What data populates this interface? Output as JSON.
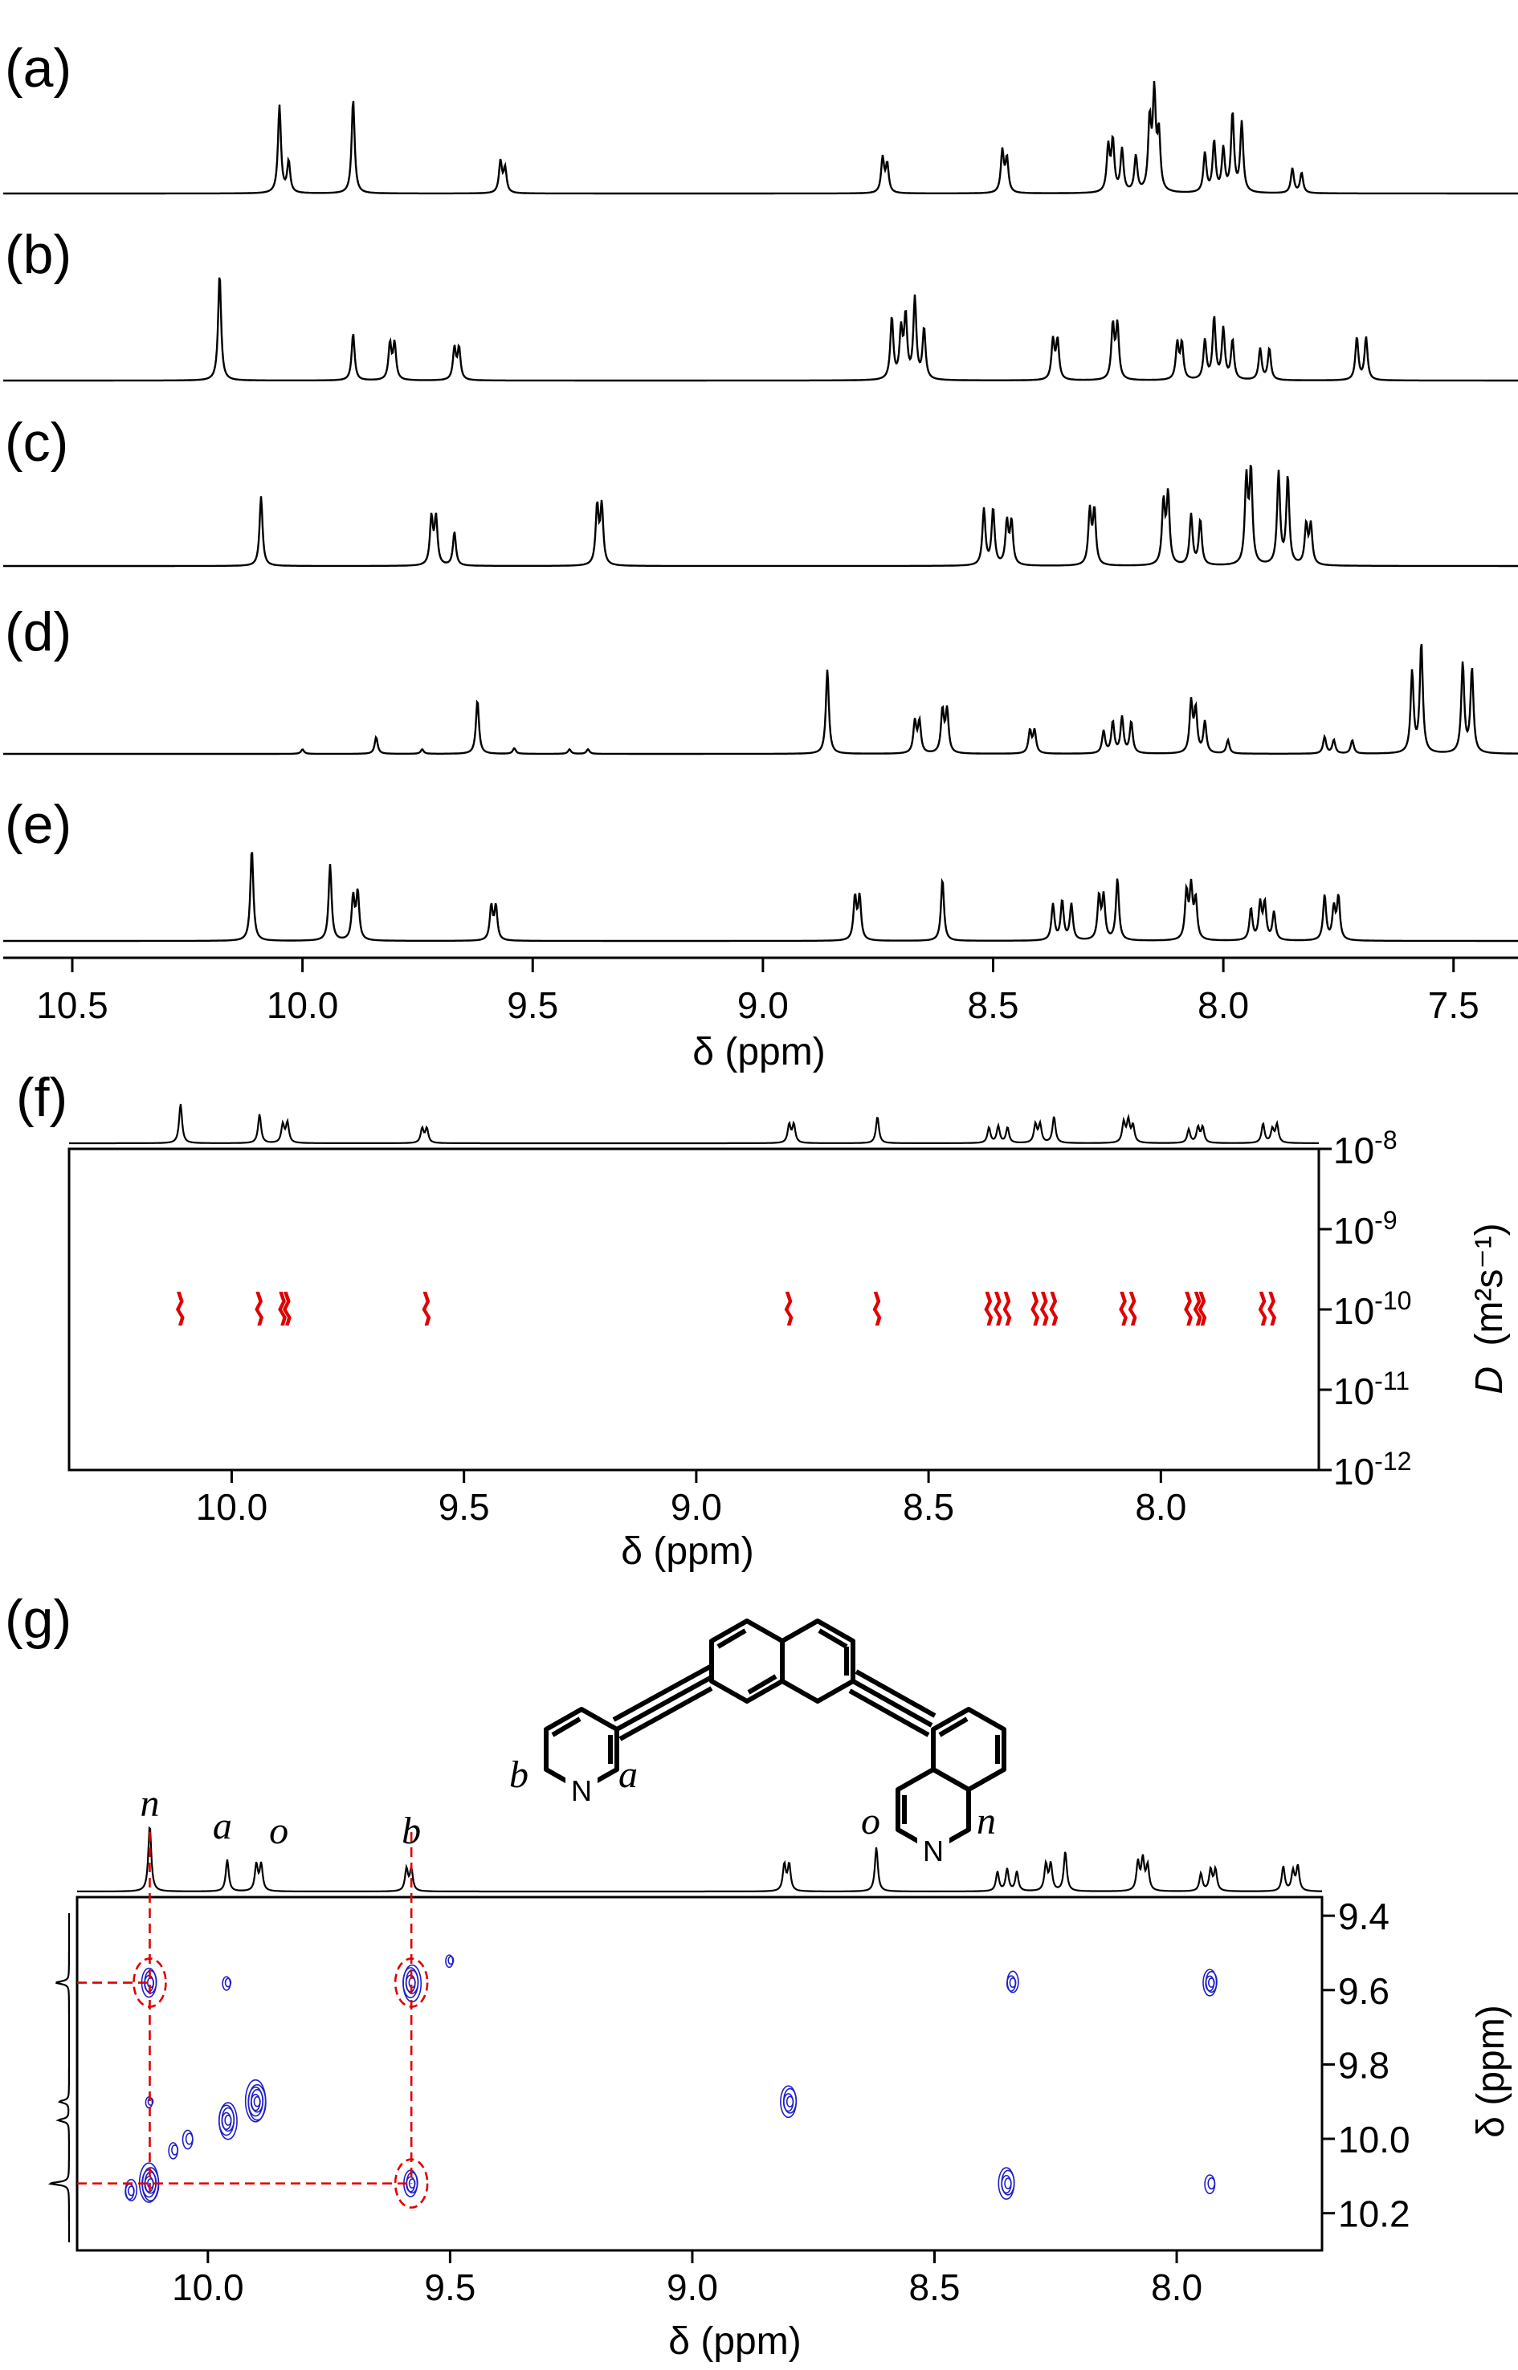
{
  "figure": {
    "panels": [
      {
        "id": "a",
        "letter": "(a)"
      },
      {
        "id": "b",
        "letter": "(b)"
      },
      {
        "id": "c",
        "letter": "(c)"
      },
      {
        "id": "d",
        "letter": "(d)"
      },
      {
        "id": "e",
        "letter": "(e)"
      },
      {
        "id": "f",
        "letter": "(f)"
      },
      {
        "id": "g",
        "letter": "(g)"
      }
    ],
    "molecule": {
      "pyridine_labels": [
        "b",
        "a"
      ],
      "isoquinoline_labels": [
        "o",
        "n"
      ],
      "atom_label": "N"
    },
    "colors": {
      "spectrum": "#000000",
      "dosy_contour": "#e00000",
      "cosy_contour": "#2020c8",
      "correlation_guide": "#e00000"
    }
  },
  "chart_data": [
    {
      "type": "line",
      "title": "",
      "xlabel": "δ (ppm)",
      "xlim": [
        10.65,
        7.36
      ],
      "x_ticks": [
        "10.5",
        "10.0",
        "9.5",
        "9.0",
        "8.5",
        "8.0",
        "7.5"
      ],
      "series": [
        {
          "panel": "(a)",
          "peaks": [
            {
              "x": 10.05,
              "y": 0.78
            },
            {
              "x": 10.03,
              "y": 0.28
            },
            {
              "x": 9.89,
              "y": 0.84
            },
            {
              "x": 9.57,
              "y": 0.28
            },
            {
              "x": 9.56,
              "y": 0.22
            },
            {
              "x": 8.74,
              "y": 0.31
            },
            {
              "x": 8.73,
              "y": 0.25
            },
            {
              "x": 8.48,
              "y": 0.37
            },
            {
              "x": 8.47,
              "y": 0.3
            },
            {
              "x": 8.25,
              "y": 0.4
            },
            {
              "x": 8.24,
              "y": 0.45
            },
            {
              "x": 8.22,
              "y": 0.38
            },
            {
              "x": 8.19,
              "y": 0.32
            },
            {
              "x": 8.16,
              "y": 0.62
            },
            {
              "x": 8.15,
              "y": 0.85
            },
            {
              "x": 8.14,
              "y": 0.5
            },
            {
              "x": 8.04,
              "y": 0.35
            },
            {
              "x": 8.02,
              "y": 0.45
            },
            {
              "x": 8.0,
              "y": 0.38
            },
            {
              "x": 7.98,
              "y": 0.7
            },
            {
              "x": 7.96,
              "y": 0.62
            },
            {
              "x": 7.85,
              "y": 0.22
            },
            {
              "x": 7.83,
              "y": 0.18
            }
          ]
        },
        {
          "panel": "(b)",
          "peaks": [
            {
              "x": 10.18,
              "y": 0.95
            },
            {
              "x": 9.89,
              "y": 0.42
            },
            {
              "x": 9.81,
              "y": 0.32
            },
            {
              "x": 9.8,
              "y": 0.32
            },
            {
              "x": 9.67,
              "y": 0.28
            },
            {
              "x": 9.66,
              "y": 0.28
            },
            {
              "x": 8.72,
              "y": 0.55
            },
            {
              "x": 8.7,
              "y": 0.42
            },
            {
              "x": 8.69,
              "y": 0.55
            },
            {
              "x": 8.67,
              "y": 0.72
            },
            {
              "x": 8.65,
              "y": 0.45
            },
            {
              "x": 8.37,
              "y": 0.35
            },
            {
              "x": 8.36,
              "y": 0.35
            },
            {
              "x": 8.24,
              "y": 0.48
            },
            {
              "x": 8.23,
              "y": 0.48
            },
            {
              "x": 8.1,
              "y": 0.32
            },
            {
              "x": 8.09,
              "y": 0.32
            },
            {
              "x": 8.04,
              "y": 0.35
            },
            {
              "x": 8.02,
              "y": 0.55
            },
            {
              "x": 8.0,
              "y": 0.45
            },
            {
              "x": 7.98,
              "y": 0.35
            },
            {
              "x": 7.92,
              "y": 0.28
            },
            {
              "x": 7.9,
              "y": 0.28
            },
            {
              "x": 7.71,
              "y": 0.38
            },
            {
              "x": 7.69,
              "y": 0.38
            }
          ]
        },
        {
          "panel": "(c)",
          "peaks": [
            {
              "x": 10.09,
              "y": 0.62
            },
            {
              "x": 9.72,
              "y": 0.42
            },
            {
              "x": 9.71,
              "y": 0.42
            },
            {
              "x": 9.67,
              "y": 0.3
            },
            {
              "x": 9.36,
              "y": 0.52
            },
            {
              "x": 9.35,
              "y": 0.52
            },
            {
              "x": 8.52,
              "y": 0.5
            },
            {
              "x": 8.5,
              "y": 0.5
            },
            {
              "x": 8.47,
              "y": 0.38
            },
            {
              "x": 8.46,
              "y": 0.38
            },
            {
              "x": 8.29,
              "y": 0.48
            },
            {
              "x": 8.28,
              "y": 0.48
            },
            {
              "x": 8.13,
              "y": 0.55
            },
            {
              "x": 8.12,
              "y": 0.62
            },
            {
              "x": 8.07,
              "y": 0.45
            },
            {
              "x": 8.05,
              "y": 0.4
            },
            {
              "x": 7.95,
              "y": 0.75
            },
            {
              "x": 7.94,
              "y": 0.82
            },
            {
              "x": 7.88,
              "y": 0.82
            },
            {
              "x": 7.86,
              "y": 0.78
            },
            {
              "x": 7.82,
              "y": 0.35
            },
            {
              "x": 7.81,
              "y": 0.35
            }
          ]
        },
        {
          "panel": "(d)",
          "peaks": [
            {
              "x": 10.0,
              "y": 0.04
            },
            {
              "x": 9.84,
              "y": 0.15
            },
            {
              "x": 9.74,
              "y": 0.04
            },
            {
              "x": 9.62,
              "y": 0.48
            },
            {
              "x": 9.54,
              "y": 0.05
            },
            {
              "x": 9.42,
              "y": 0.04
            },
            {
              "x": 9.38,
              "y": 0.04
            },
            {
              "x": 8.86,
              "y": 0.75
            },
            {
              "x": 8.67,
              "y": 0.28
            },
            {
              "x": 8.66,
              "y": 0.28
            },
            {
              "x": 8.61,
              "y": 0.38
            },
            {
              "x": 8.6,
              "y": 0.38
            },
            {
              "x": 8.42,
              "y": 0.2
            },
            {
              "x": 8.41,
              "y": 0.2
            },
            {
              "x": 8.26,
              "y": 0.2
            },
            {
              "x": 8.24,
              "y": 0.28
            },
            {
              "x": 8.22,
              "y": 0.32
            },
            {
              "x": 8.2,
              "y": 0.28
            },
            {
              "x": 8.07,
              "y": 0.45
            },
            {
              "x": 8.06,
              "y": 0.38
            },
            {
              "x": 8.04,
              "y": 0.28
            },
            {
              "x": 7.99,
              "y": 0.12
            },
            {
              "x": 7.78,
              "y": 0.15
            },
            {
              "x": 7.76,
              "y": 0.12
            },
            {
              "x": 7.72,
              "y": 0.12
            },
            {
              "x": 7.59,
              "y": 0.72
            },
            {
              "x": 7.57,
              "y": 0.98
            },
            {
              "x": 7.48,
              "y": 0.8
            },
            {
              "x": 7.46,
              "y": 0.75
            }
          ]
        },
        {
          "panel": "(e)",
          "peaks": [
            {
              "x": 10.11,
              "y": 0.82
            },
            {
              "x": 9.94,
              "y": 0.68
            },
            {
              "x": 9.89,
              "y": 0.38
            },
            {
              "x": 9.88,
              "y": 0.42
            },
            {
              "x": 9.59,
              "y": 0.3
            },
            {
              "x": 9.58,
              "y": 0.3
            },
            {
              "x": 8.8,
              "y": 0.38
            },
            {
              "x": 8.79,
              "y": 0.38
            },
            {
              "x": 8.61,
              "y": 0.55
            },
            {
              "x": 8.37,
              "y": 0.32
            },
            {
              "x": 8.35,
              "y": 0.35
            },
            {
              "x": 8.33,
              "y": 0.32
            },
            {
              "x": 8.27,
              "y": 0.38
            },
            {
              "x": 8.26,
              "y": 0.38
            },
            {
              "x": 8.23,
              "y": 0.55
            },
            {
              "x": 8.08,
              "y": 0.42
            },
            {
              "x": 8.07,
              "y": 0.45
            },
            {
              "x": 8.06,
              "y": 0.35
            },
            {
              "x": 7.94,
              "y": 0.28
            },
            {
              "x": 7.92,
              "y": 0.32
            },
            {
              "x": 7.91,
              "y": 0.32
            },
            {
              "x": 7.89,
              "y": 0.25
            },
            {
              "x": 7.78,
              "y": 0.4
            },
            {
              "x": 7.76,
              "y": 0.28
            },
            {
              "x": 7.75,
              "y": 0.38
            }
          ]
        }
      ]
    },
    {
      "type": "heatmap",
      "panel": "(f)",
      "title": "",
      "xlabel": "δ (ppm)",
      "ylabel_main": "D",
      "ylabel_unit": "(m²s⁻¹)",
      "xlim": [
        10.35,
        7.66
      ],
      "x_ticks": [
        "10.0",
        "9.5",
        "9.0",
        "8.5",
        "8.0"
      ],
      "y_scale": "log",
      "ylim": [
        1e-12,
        1e-08
      ],
      "y_ticks": [
        {
          "base": "10",
          "exp": "-8"
        },
        {
          "base": "10",
          "exp": "-9"
        },
        {
          "base": "10",
          "exp": "-10"
        },
        {
          "base": "10",
          "exp": "-11"
        },
        {
          "base": "10",
          "exp": "-12"
        }
      ],
      "projection_peaks": [
        {
          "x": 10.11,
          "y": 0.82
        },
        {
          "x": 9.94,
          "y": 0.6
        },
        {
          "x": 9.89,
          "y": 0.38
        },
        {
          "x": 9.88,
          "y": 0.42
        },
        {
          "x": 9.59,
          "y": 0.3
        },
        {
          "x": 9.58,
          "y": 0.3
        },
        {
          "x": 8.8,
          "y": 0.38
        },
        {
          "x": 8.79,
          "y": 0.38
        },
        {
          "x": 8.61,
          "y": 0.55
        },
        {
          "x": 8.37,
          "y": 0.32
        },
        {
          "x": 8.35,
          "y": 0.35
        },
        {
          "x": 8.33,
          "y": 0.32
        },
        {
          "x": 8.27,
          "y": 0.38
        },
        {
          "x": 8.26,
          "y": 0.38
        },
        {
          "x": 8.23,
          "y": 0.55
        },
        {
          "x": 8.08,
          "y": 0.42
        },
        {
          "x": 8.07,
          "y": 0.45
        },
        {
          "x": 8.06,
          "y": 0.35
        },
        {
          "x": 7.94,
          "y": 0.28
        },
        {
          "x": 7.92,
          "y": 0.32
        },
        {
          "x": 7.91,
          "y": 0.32
        },
        {
          "x": 7.78,
          "y": 0.4
        },
        {
          "x": 7.76,
          "y": 0.28
        },
        {
          "x": 7.75,
          "y": 0.38
        }
      ],
      "signals": [
        {
          "x": 10.11,
          "D": 1e-10
        },
        {
          "x": 9.94,
          "D": 1e-10
        },
        {
          "x": 9.89,
          "D": 1e-10
        },
        {
          "x": 9.88,
          "D": 1e-10
        },
        {
          "x": 9.58,
          "D": 1e-10
        },
        {
          "x": 8.8,
          "D": 1e-10
        },
        {
          "x": 8.61,
          "D": 1e-10
        },
        {
          "x": 8.37,
          "D": 1e-10
        },
        {
          "x": 8.35,
          "D": 1e-10
        },
        {
          "x": 8.33,
          "D": 1e-10
        },
        {
          "x": 8.27,
          "D": 1e-10
        },
        {
          "x": 8.25,
          "D": 1e-10
        },
        {
          "x": 8.23,
          "D": 1e-10
        },
        {
          "x": 8.08,
          "D": 1e-10
        },
        {
          "x": 8.06,
          "D": 1e-10
        },
        {
          "x": 7.94,
          "D": 1e-10
        },
        {
          "x": 7.92,
          "D": 1e-10
        },
        {
          "x": 7.91,
          "D": 1e-10
        },
        {
          "x": 7.78,
          "D": 1e-10
        },
        {
          "x": 7.76,
          "D": 1e-10
        }
      ]
    },
    {
      "type": "heatmap",
      "panel": "(g)",
      "title": "",
      "xlabel": "δ (ppm)",
      "ylabel": "δ (ppm)",
      "xlim": [
        10.27,
        7.7
      ],
      "ylim": [
        9.35,
        10.3
      ],
      "x_ticks": [
        "10.0",
        "9.5",
        "9.0",
        "8.5",
        "8.0"
      ],
      "y_ticks": [
        "9.4",
        "9.6",
        "9.8",
        "10.0",
        "10.2"
      ],
      "projection_peaks": [
        {
          "x": 10.12,
          "y": 0.75
        },
        {
          "x": 9.96,
          "y": 0.36
        },
        {
          "x": 9.9,
          "y": 0.3
        },
        {
          "x": 9.89,
          "y": 0.3
        },
        {
          "x": 9.59,
          "y": 0.25
        },
        {
          "x": 9.58,
          "y": 0.25
        },
        {
          "x": 8.81,
          "y": 0.3
        },
        {
          "x": 8.8,
          "y": 0.3
        },
        {
          "x": 8.62,
          "y": 0.5
        },
        {
          "x": 8.37,
          "y": 0.22
        },
        {
          "x": 8.35,
          "y": 0.25
        },
        {
          "x": 8.33,
          "y": 0.22
        },
        {
          "x": 8.27,
          "y": 0.3
        },
        {
          "x": 8.26,
          "y": 0.3
        },
        {
          "x": 8.23,
          "y": 0.45
        },
        {
          "x": 8.08,
          "y": 0.32
        },
        {
          "x": 8.07,
          "y": 0.35
        },
        {
          "x": 8.06,
          "y": 0.28
        },
        {
          "x": 7.95,
          "y": 0.2
        },
        {
          "x": 7.93,
          "y": 0.24
        },
        {
          "x": 7.92,
          "y": 0.24
        },
        {
          "x": 7.78,
          "y": 0.28
        },
        {
          "x": 7.76,
          "y": 0.22
        },
        {
          "x": 7.75,
          "y": 0.28
        }
      ],
      "projection_labels": [
        {
          "text": "n",
          "x": 10.12
        },
        {
          "text": "a",
          "x": 9.97
        },
        {
          "text": "o",
          "x": 9.9
        },
        {
          "text": "b",
          "x": 9.58
        }
      ],
      "vertical_projection_peaks": [
        {
          "y": 9.58,
          "h": 0.55
        },
        {
          "y": 9.9,
          "h": 0.4
        },
        {
          "y": 9.95,
          "h": 0.45
        },
        {
          "y": 10.12,
          "h": 0.8
        }
      ],
      "cross_peaks": [
        {
          "x": 10.12,
          "y": 9.58,
          "size": 1.0
        },
        {
          "x": 9.96,
          "y": 9.58,
          "size": 0.4
        },
        {
          "x": 9.58,
          "y": 9.58,
          "size": 1.3
        },
        {
          "x": 9.5,
          "y": 9.52,
          "size": 0.35
        },
        {
          "x": 8.34,
          "y": 9.58,
          "size": 0.7
        },
        {
          "x": 7.93,
          "y": 9.58,
          "size": 0.9
        },
        {
          "x": 9.9,
          "y": 9.9,
          "size": 1.5
        },
        {
          "x": 9.96,
          "y": 9.95,
          "size": 1.3
        },
        {
          "x": 10.04,
          "y": 10.0,
          "size": 0.6
        },
        {
          "x": 10.07,
          "y": 10.03,
          "size": 0.5
        },
        {
          "x": 10.12,
          "y": 9.9,
          "size": 0.3
        },
        {
          "x": 8.8,
          "y": 9.9,
          "size": 1.1
        },
        {
          "x": 10.12,
          "y": 10.12,
          "size": 1.4
        },
        {
          "x": 10.16,
          "y": 10.14,
          "size": 0.7
        },
        {
          "x": 9.58,
          "y": 10.12,
          "size": 0.9
        },
        {
          "x": 8.35,
          "y": 10.12,
          "size": 1.1
        },
        {
          "x": 7.93,
          "y": 10.12,
          "size": 0.6
        }
      ],
      "guides": [
        {
          "from": [
            10.12,
            9.26
          ],
          "to": [
            10.12,
            10.14
          ]
        },
        {
          "from": [
            9.58,
            9.26
          ],
          "to": [
            9.58,
            10.12
          ]
        },
        {
          "from": [
            10.25,
            9.58
          ],
          "to": [
            10.12,
            9.58
          ]
        },
        {
          "from": [
            10.25,
            10.12
          ],
          "to": [
            9.58,
            10.12
          ]
        }
      ],
      "highlighted_cross_peaks": [
        {
          "x": 10.12,
          "y": 9.58
        },
        {
          "x": 9.58,
          "y": 9.58
        },
        {
          "x": 9.58,
          "y": 10.12
        }
      ]
    }
  ]
}
